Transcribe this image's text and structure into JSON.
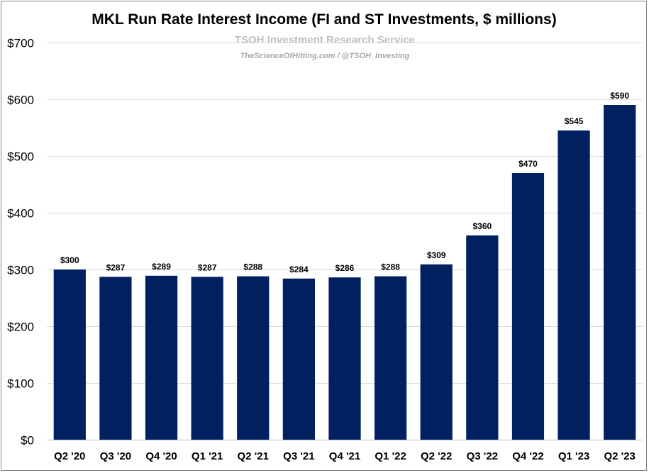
{
  "chart_data": {
    "type": "bar",
    "title": "MKL Run Rate Interest Income (FI and ST Investments, $ millions)",
    "watermark": {
      "line1": "TSOH Investment Research Service",
      "line2": "TheScienceOfHitting.com / @TSOH_Investing"
    },
    "categories": [
      "Q2 '20",
      "Q3 '20",
      "Q4 '20",
      "Q1 '21",
      "Q2 '21",
      "Q3 '21",
      "Q4 '21",
      "Q1 '22",
      "Q2 '22",
      "Q3 '22",
      "Q4 '22",
      "Q1 '23",
      "Q2 '23"
    ],
    "values": [
      300,
      287,
      289,
      287,
      288,
      284,
      286,
      288,
      309,
      360,
      470,
      545,
      590
    ],
    "data_labels": [
      "$300",
      "$287",
      "$289",
      "$287",
      "$288",
      "$284",
      "$286",
      "$288",
      "$309",
      "$360",
      "$470",
      "$545",
      "$590"
    ],
    "yticks": [
      0,
      100,
      200,
      300,
      400,
      500,
      600,
      700
    ],
    "ytick_labels": [
      "$0",
      "$100",
      "$200",
      "$300",
      "$400",
      "$500",
      "$600",
      "$700"
    ],
    "ylim": [
      0,
      700
    ],
    "xlabel": "",
    "ylabel": "",
    "grid": true,
    "legend": "none",
    "bar_color": "#002060"
  }
}
